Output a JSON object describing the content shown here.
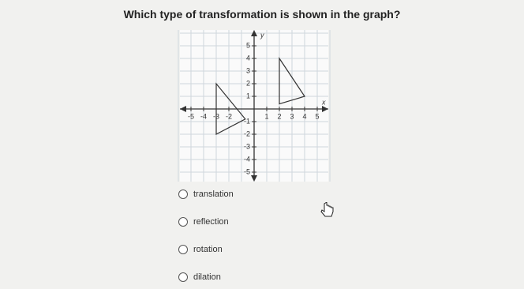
{
  "question": "Which type of transformation is shown in the graph?",
  "graph": {
    "x_axis_label": "x",
    "y_axis_label": "y",
    "x_tick_labels": [
      "-5",
      "-4",
      "-3",
      "-2",
      "1",
      "2",
      "3",
      "4",
      "5"
    ],
    "y_tick_labels": [
      "5",
      "4",
      "3",
      "2",
      "1",
      "-1",
      "-2",
      "-3",
      "-4",
      "-5"
    ]
  },
  "options": [
    "translation",
    "reflection",
    "rotation",
    "dilation"
  ]
}
